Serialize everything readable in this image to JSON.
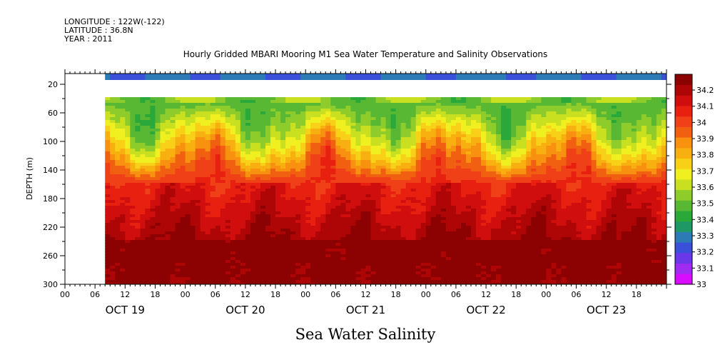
{
  "header": {
    "lines": [
      "LONGITUDE : 122W(-122)",
      "LATITUDE : 36.8N",
      "YEAR : 2011"
    ],
    "title": "Hourly Gridded MBARI Mooring M1 Sea Water Temperature and Salinity Observations"
  },
  "chart_data": {
    "type": "heatmap",
    "title": "Hourly Gridded MBARI Mooring M1 Sea Water Temperature and Salinity Observations",
    "xlabel": "Sea Water Salinity",
    "ylabel": "DEPTH (m)",
    "x_unit": "hours since OCT 19 00:00, 2011",
    "xlim": [
      0,
      120
    ],
    "ylim": [
      300,
      5
    ],
    "y_reversed": true,
    "x_tick_labels": [
      "00",
      "06",
      "12",
      "18",
      "00",
      "06",
      "12",
      "18",
      "00",
      "06",
      "12",
      "18",
      "00",
      "06",
      "12",
      "18",
      "00",
      "06",
      "12",
      "18"
    ],
    "x_date_labels": [
      "OCT 19",
      "OCT 20",
      "OCT 21",
      "OCT 22",
      "OCT 23"
    ],
    "y_ticks": [
      20,
      60,
      100,
      140,
      180,
      220,
      260,
      300
    ],
    "data_start_hour": 8,
    "data_end_hour": 119,
    "no_data_band_m": [
      14,
      38
    ],
    "surface_value": 33.25,
    "colorbar": {
      "levels": [
        33.0,
        33.1,
        33.2,
        33.3,
        33.4,
        33.5,
        33.6,
        33.7,
        33.8,
        33.9,
        34.0,
        34.1,
        34.2
      ],
      "colors": [
        "#d80cff",
        "#a02cf2",
        "#6a38e8",
        "#3a50d8",
        "#2c7ab6",
        "#1e9966",
        "#2aa83a",
        "#58b834",
        "#8ecc2c",
        "#c8e020",
        "#f0f020",
        "#f8d018",
        "#f8b010",
        "#f89010",
        "#f06010",
        "#f04018",
        "#e82010",
        "#d00e0e",
        "#ae0606",
        "#8c0202"
      ],
      "tick_labels": [
        "33",
        "33.1",
        "33.2",
        "33.3",
        "33.4",
        "33.5",
        "33.6",
        "33.7",
        "33.8",
        "33.9",
        "34",
        "34.1",
        "34.2"
      ]
    }
  }
}
